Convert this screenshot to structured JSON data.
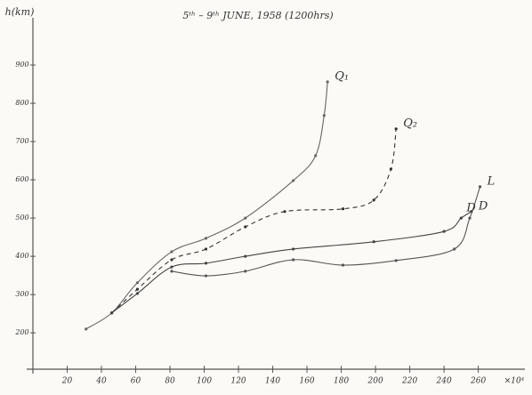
{
  "chart_data": {
    "type": "line",
    "title": "5ᵗʰ – 9ᵗʰ JUNE, 1958 (1200hrs)",
    "y_label": "h(km)",
    "x_label": "×10⁴",
    "xlim": [
      0,
      282
    ],
    "ylim": [
      105,
      1035
    ],
    "xticks": [
      20,
      40,
      60,
      80,
      100,
      120,
      140,
      160,
      180,
      200,
      220,
      240,
      260
    ],
    "yticks": [
      200,
      300,
      400,
      500,
      600,
      700,
      800,
      900
    ],
    "series": [
      {
        "name": "Q₁",
        "color": "#666",
        "dashed": false,
        "x": [
          31,
          46,
          61,
          81,
          101,
          124,
          152,
          165,
          170,
          172
        ],
        "values": [
          210,
          252,
          331,
          412,
          447,
          500,
          598,
          663,
          768,
          856
        ]
      },
      {
        "name": "Q₂",
        "color": "#333",
        "dashed": true,
        "x": [
          46,
          61,
          81,
          101,
          124,
          147,
          181,
          199,
          209,
          212
        ],
        "values": [
          252,
          314,
          391,
          419,
          477,
          517,
          524,
          547,
          628,
          733
        ]
      },
      {
        "name": "D",
        "color": "#444",
        "dashed": false,
        "x": [
          46,
          61,
          81,
          101,
          124,
          152,
          199,
          240,
          250,
          256
        ],
        "values": [
          252,
          303,
          372,
          382,
          400,
          419,
          438,
          465,
          500,
          517
        ]
      },
      {
        "name": "L",
        "color": "#555",
        "dashed": false,
        "x": [
          81,
          101,
          124,
          152,
          181,
          212,
          246,
          255,
          261
        ],
        "values": [
          361,
          349,
          361,
          391,
          377,
          389,
          419,
          500,
          582
        ]
      }
    ],
    "annotations": [
      {
        "text": "D",
        "x": 250,
        "y": 517
      }
    ]
  }
}
